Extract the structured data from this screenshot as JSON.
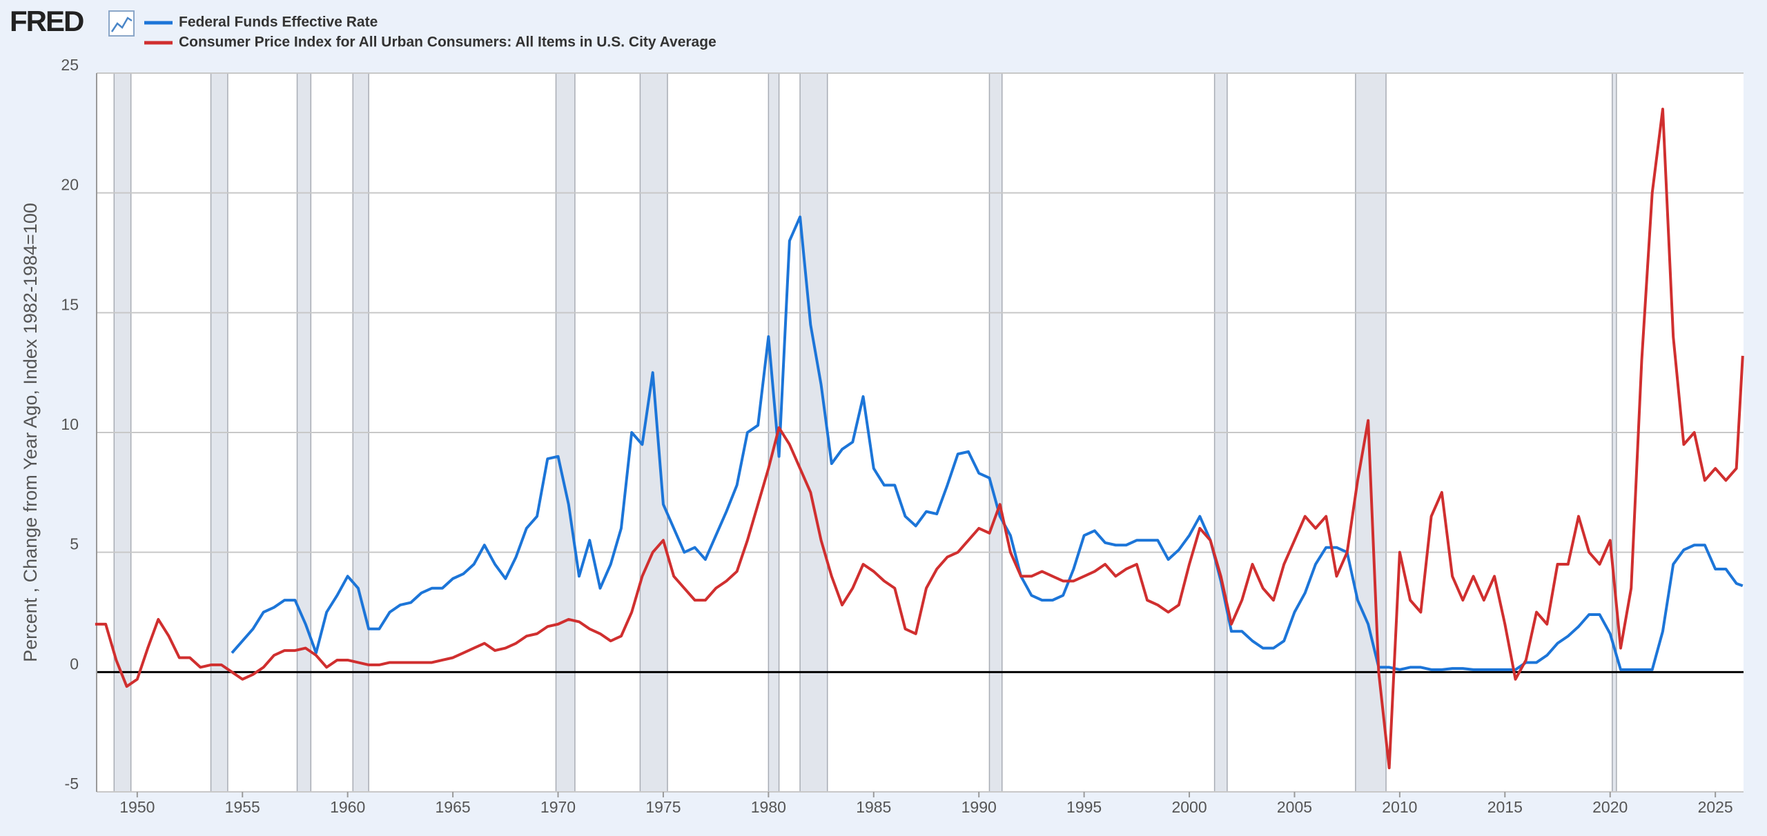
{
  "logo": "FRED",
  "chart_data": {
    "type": "line",
    "y_label": "Percent , Change from Year Ago, Index 1982-1984=100",
    "legend": "top-left",
    "grid": true,
    "xlim": [
      1948.07,
      2026.34
    ],
    "ylim": [
      -5,
      25
    ],
    "xticks": [
      1950,
      1955,
      1960,
      1965,
      1970,
      1975,
      1980,
      1985,
      1990,
      1995,
      2000,
      2005,
      2010,
      2015,
      2020,
      2025
    ],
    "yticks": [
      -5,
      0,
      5,
      10,
      15,
      20,
      25
    ],
    "recessions": [
      [
        1948.9,
        1949.7
      ],
      [
        1953.5,
        1954.3
      ],
      [
        1957.6,
        1958.25
      ],
      [
        1960.25,
        1961.0
      ],
      [
        1969.9,
        1970.8
      ],
      [
        1973.9,
        1975.2
      ],
      [
        1980.0,
        1980.5
      ],
      [
        1981.5,
        1982.8
      ],
      [
        1990.5,
        1991.1
      ],
      [
        2001.2,
        2001.8
      ],
      [
        2007.9,
        2009.35
      ],
      [
        2020.1,
        2020.3
      ]
    ],
    "x": [
      1948,
      1948.5,
      1949,
      1949.5,
      1950,
      1950.5,
      1951,
      1951.5,
      1952,
      1952.5,
      1953,
      1953.5,
      1954,
      1954.5,
      1955,
      1955.5,
      1956,
      1956.5,
      1957,
      1957.5,
      1958,
      1958.5,
      1959,
      1959.5,
      1960,
      1960.5,
      1961,
      1961.5,
      1962,
      1962.5,
      1963,
      1963.5,
      1964,
      1964.5,
      1965,
      1965.5,
      1966,
      1966.5,
      1967,
      1967.5,
      1968,
      1968.5,
      1969,
      1969.5,
      1970,
      1970.5,
      1971,
      1971.5,
      1972,
      1972.5,
      1973,
      1973.5,
      1974,
      1974.5,
      1975,
      1975.5,
      1976,
      1976.5,
      1977,
      1977.5,
      1978,
      1978.5,
      1979,
      1979.5,
      1980,
      1980.5,
      1981,
      1981.5,
      1982,
      1982.5,
      1983,
      1983.5,
      1984,
      1984.5,
      1985,
      1985.5,
      1986,
      1986.5,
      1987,
      1987.5,
      1988,
      1988.5,
      1989,
      1989.5,
      1990,
      1990.5,
      1991,
      1991.5,
      1992,
      1992.5,
      1993,
      1993.5,
      1994,
      1994.5,
      1995,
      1995.5,
      1996,
      1996.5,
      1997,
      1997.5,
      1998,
      1998.5,
      1999,
      1999.5,
      2000,
      2000.5,
      2001,
      2001.5,
      2002,
      2002.5,
      2003,
      2003.5,
      2004,
      2004.5,
      2005,
      2005.5,
      2006,
      2006.5,
      2007,
      2007.5,
      2008,
      2008.5,
      2009,
      2009.5,
      2010,
      2010.5,
      2011,
      2011.5,
      2012,
      2012.5,
      2013,
      2013.5,
      2014,
      2014.5,
      2015,
      2015.5,
      2016,
      2016.5,
      2017,
      2017.5,
      2018,
      2018.5,
      2019,
      2019.5,
      2020,
      2020.5,
      2021,
      2021.5,
      2022,
      2022.5,
      2023,
      2023.5,
      2024,
      2024.5,
      2025,
      2025.5,
      2026,
      2026.3
    ],
    "series": [
      {
        "name": "Federal Funds Effective Rate",
        "color": "#1c75d8",
        "values": [
          null,
          null,
          null,
          null,
          null,
          null,
          null,
          null,
          null,
          null,
          null,
          null,
          null,
          0.8,
          1.3,
          1.8,
          2.5,
          2.7,
          3.0,
          3.0,
          2.0,
          0.8,
          2.5,
          3.2,
          4.0,
          3.5,
          1.8,
          1.8,
          2.5,
          2.8,
          2.9,
          3.3,
          3.5,
          3.5,
          3.9,
          4.1,
          4.5,
          5.3,
          4.5,
          3.9,
          4.8,
          6.0,
          6.5,
          8.9,
          9.0,
          7.0,
          4.0,
          5.5,
          3.5,
          4.5,
          6.0,
          10.0,
          9.5,
          12.5,
          7.0,
          6.0,
          5.0,
          5.2,
          4.7,
          5.7,
          6.7,
          7.8,
          10.0,
          10.3,
          14.0,
          9.0,
          18.0,
          19.0,
          14.5,
          12.0,
          8.7,
          9.3,
          9.6,
          11.5,
          8.5,
          7.8,
          7.8,
          6.5,
          6.1,
          6.7,
          6.6,
          7.8,
          9.1,
          9.2,
          8.3,
          8.1,
          6.5,
          5.7,
          4.0,
          3.2,
          3.0,
          3.0,
          3.2,
          4.3,
          5.7,
          5.9,
          5.4,
          5.3,
          5.3,
          5.5,
          5.5,
          5.5,
          4.7,
          5.1,
          5.7,
          6.5,
          5.5,
          3.8,
          1.7,
          1.7,
          1.3,
          1.0,
          1.0,
          1.3,
          2.5,
          3.3,
          4.5,
          5.2,
          5.2,
          5.0,
          3.0,
          2.0,
          0.2,
          0.2,
          0.1,
          0.2,
          0.2,
          0.1,
          0.1,
          0.15,
          0.15,
          0.1,
          0.1,
          0.1,
          0.1,
          0.1,
          0.4,
          0.4,
          0.7,
          1.2,
          1.5,
          1.9,
          2.4,
          2.4,
          1.6,
          0.1,
          0.1,
          0.1,
          0.1,
          1.7,
          4.5,
          5.1,
          5.3,
          5.3,
          4.3,
          4.3,
          3.7,
          3.6
        ]
      },
      {
        "name": "Consumer Price Index for All Urban Consumers: All Items in U.S. City Average",
        "color": "#d02f2f",
        "values": [
          2.0,
          2.0,
          0.5,
          -0.6,
          -0.3,
          1.0,
          2.2,
          1.5,
          0.6,
          0.6,
          0.2,
          0.3,
          0.3,
          0.0,
          -0.3,
          -0.1,
          0.2,
          0.7,
          0.9,
          0.9,
          1.0,
          0.7,
          0.2,
          0.5,
          0.5,
          0.4,
          0.3,
          0.3,
          0.4,
          0.4,
          0.4,
          0.4,
          0.4,
          0.5,
          0.6,
          0.8,
          1.0,
          1.2,
          0.9,
          1.0,
          1.2,
          1.5,
          1.6,
          1.9,
          2.0,
          2.2,
          2.1,
          1.8,
          1.6,
          1.3,
          1.5,
          2.5,
          4.0,
          5.0,
          5.5,
          4.0,
          3.5,
          3.0,
          3.0,
          3.5,
          3.8,
          4.2,
          5.5,
          7.0,
          8.5,
          10.2,
          9.5,
          8.5,
          7.5,
          5.5,
          4.0,
          2.8,
          3.5,
          4.5,
          4.2,
          3.8,
          3.5,
          1.8,
          1.6,
          3.5,
          4.3,
          4.8,
          5.0,
          5.5,
          6.0,
          5.8,
          7.0,
          5.0,
          4.0,
          4.0,
          4.2,
          4.0,
          3.8,
          3.8,
          4.0,
          4.2,
          4.5,
          4.0,
          4.3,
          4.5,
          3.0,
          2.8,
          2.5,
          2.8,
          4.5,
          6.0,
          5.5,
          4.0,
          2.0,
          3.0,
          4.5,
          3.5,
          3.0,
          4.5,
          5.5,
          6.5,
          6.0,
          6.5,
          4.0,
          5.0,
          8.0,
          10.5,
          0.0,
          -4.0,
          5.0,
          3.0,
          2.5,
          6.5,
          7.5,
          4.0,
          3.0,
          4.0,
          3.0,
          4.0,
          2.0,
          -0.3,
          0.5,
          2.5,
          2.0,
          4.5,
          4.5,
          6.5,
          5.0,
          4.5,
          5.5,
          1.0,
          3.5,
          13.0,
          20.0,
          23.5,
          14.0,
          9.5,
          10.0,
          8.0,
          8.5,
          8.0,
          8.5,
          13.2
        ]
      }
    ]
  }
}
